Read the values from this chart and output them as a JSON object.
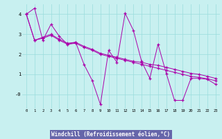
{
  "xlabel": "Windchill (Refroidissement éolien,°C)",
  "bg_color": "#c8f0f0",
  "line_color": "#aa00aa",
  "grid_color": "#99dddd",
  "xlabel_bg": "#6666aa",
  "xlabel_fg": "#ffffff",
  "series1_y": [
    4.0,
    4.3,
    2.7,
    3.5,
    2.9,
    2.5,
    2.6,
    1.5,
    0.7,
    -0.5,
    2.2,
    1.6,
    4.05,
    3.2,
    1.65,
    0.8,
    2.5,
    1.05,
    -0.3,
    -0.3,
    0.8,
    0.8,
    0.75,
    0.5
  ],
  "series2_y": [
    4.0,
    2.7,
    2.85,
    3.0,
    2.75,
    2.55,
    2.6,
    2.4,
    2.25,
    2.05,
    1.95,
    1.85,
    1.75,
    1.65,
    1.6,
    1.5,
    1.45,
    1.35,
    1.25,
    1.15,
    1.05,
    1.0,
    0.9,
    0.8
  ],
  "series3_y": [
    4.0,
    2.7,
    2.8,
    2.95,
    2.7,
    2.5,
    2.55,
    2.35,
    2.2,
    2.0,
    1.9,
    1.8,
    1.7,
    1.6,
    1.5,
    1.4,
    1.3,
    1.2,
    1.1,
    1.0,
    0.9,
    0.85,
    0.78,
    0.68
  ],
  "ylim": [
    -0.7,
    4.5
  ],
  "xlim": [
    -0.5,
    23.5
  ],
  "yticks": [
    0,
    1,
    2,
    3,
    4
  ],
  "ytick_labels": [
    "-0",
    "1",
    "2",
    "3",
    "4"
  ]
}
